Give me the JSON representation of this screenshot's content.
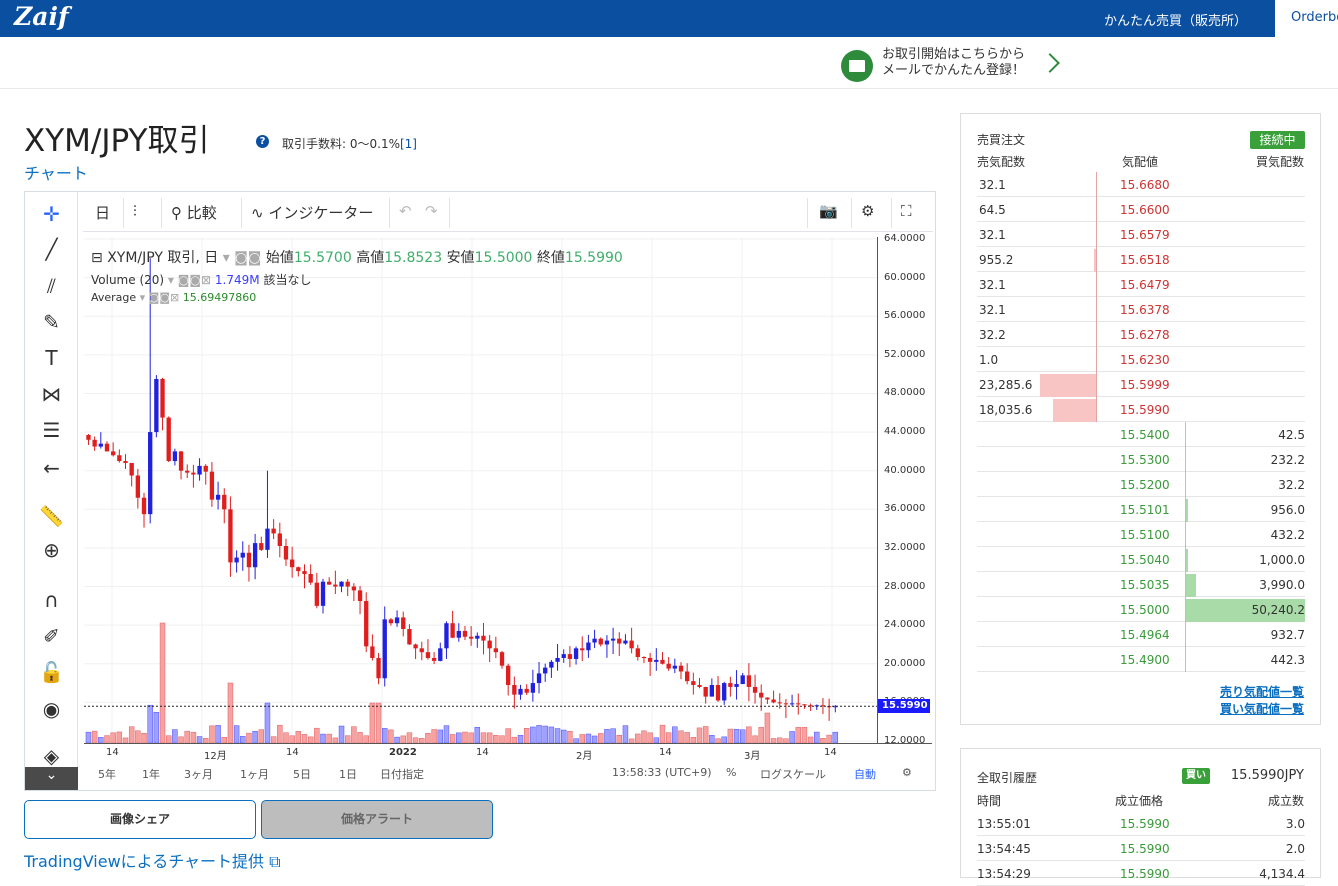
{
  "header": {
    "logo": "Zaif",
    "easy_trade": "かんたん売買（販売所）",
    "orderbook_tab": "Orderbook"
  },
  "promo": {
    "line1": "お取引開始はこちらから",
    "line2": "メールでかんたん登録！",
    "icon": "mail-icon"
  },
  "page": {
    "title": "XYM/JPY取引",
    "fee_label": "取引手数料: 0〜0.1%",
    "fee_link": "[1]",
    "chart_link": "チャート"
  },
  "chart_toolbar": {
    "interval": "日",
    "compare": "比較",
    "indicators": "インジケーター"
  },
  "chart_legend": {
    "symbol": "XYM/JPY 取引, 日",
    "open_label": "始値",
    "open": "15.5700",
    "high_label": "高値",
    "high": "15.8523",
    "low_label": "安値",
    "low": "15.5000",
    "close_label": "終値",
    "close": "15.5990",
    "volume_label": "Volume (20)",
    "volume_value": "1.749M",
    "volume_note": "該当なし",
    "average_label": "Average",
    "average_value": "15.69497860"
  },
  "y_ticks": [
    "64.0000",
    "60.0000",
    "56.0000",
    "52.0000",
    "48.0000",
    "44.0000",
    "40.0000",
    "36.0000",
    "32.0000",
    "28.0000",
    "24.0000",
    "20.0000",
    "16.0000",
    "12.0000"
  ],
  "last_price_label": "15.5990",
  "x_ticks": [
    "14",
    "12月",
    "14",
    "2022",
    "14",
    "2月",
    "14",
    "3月",
    "14"
  ],
  "bottom_toolbar": {
    "ranges": [
      "5年",
      "1年",
      "3ヶ月",
      "1ヶ月",
      "5日",
      "1日"
    ],
    "date_pick": "日付指定",
    "time": "13:58:33 (UTC+9)",
    "percent": "%",
    "log": "ログスケール",
    "auto": "自動"
  },
  "chart_data": {
    "type": "candlestick",
    "title": "XYM/JPY 取引, 日",
    "last": {
      "open": 15.57,
      "high": 15.8523,
      "low": 15.5,
      "close": 15.599
    },
    "ylim": [
      12,
      64
    ],
    "x_ticks": [
      "14",
      "12月",
      "14",
      "2022",
      "14",
      "2月",
      "14",
      "3月",
      "14"
    ],
    "closes": [
      43.2,
      42.5,
      42.8,
      42.0,
      41.6,
      41.0,
      40.8,
      39.5,
      37.2,
      35.5,
      44.0,
      49.5,
      45.5,
      41.0,
      42.0,
      40.0,
      39.8,
      39.6,
      40.5,
      39.9,
      37.0,
      37.5,
      36.0,
      30.5,
      31.0,
      31.5,
      30.0,
      32.5,
      31.8,
      34.0,
      33.5,
      32.2,
      30.8,
      30.0,
      29.6,
      29.3,
      28.4,
      26.0,
      28.5,
      28.2,
      28.0,
      28.5,
      28.0,
      27.6,
      26.5,
      21.8,
      20.6,
      18.5,
      24.6,
      24.2,
      24.8,
      23.6,
      22.0,
      21.6,
      21.2,
      20.6,
      20.3,
      21.6,
      24.2,
      22.7,
      23.4,
      22.8,
      22.6,
      22.9,
      22.4,
      21.6,
      21.2,
      19.8,
      17.8,
      16.8,
      17.4,
      17.0,
      18.0,
      19.0,
      19.6,
      20.2,
      20.6,
      21.0,
      20.5,
      21.6,
      21.4,
      22.2,
      22.6,
      22.0,
      22.4,
      22.6,
      22.1,
      22.4,
      21.6,
      20.7,
      20.6,
      20.2,
      20.4,
      20.0,
      19.5,
      19.8,
      19.2,
      18.2,
      17.8,
      17.6,
      16.6,
      17.8,
      16.2,
      18.0,
      17.6,
      17.9,
      18.8,
      17.6,
      17.0,
      16.5,
      16.3,
      16.0,
      15.9,
      15.8,
      15.9,
      15.8,
      15.7,
      15.6,
      15.7,
      15.6,
      15.5,
      15.6
    ]
  },
  "side_buttons": {
    "share": "画像シェア",
    "alert": "価格アラート",
    "tv_credit": "TradingViewによるチャート提供"
  },
  "orderbook": {
    "title": "売買注文",
    "status": "接続中",
    "headers": {
      "ask_qty": "売気配数",
      "price": "気配値",
      "bid_qty": "買気配数"
    },
    "asks": [
      {
        "qty": "32.1",
        "price": "15.6680",
        "depth": 0
      },
      {
        "qty": "64.5",
        "price": "15.6600",
        "depth": 0
      },
      {
        "qty": "32.1",
        "price": "15.6579",
        "depth": 0
      },
      {
        "qty": "955.2",
        "price": "15.6518",
        "depth": 0.02
      },
      {
        "qty": "32.1",
        "price": "15.6479",
        "depth": 0
      },
      {
        "qty": "32.1",
        "price": "15.6378",
        "depth": 0
      },
      {
        "qty": "32.2",
        "price": "15.6278",
        "depth": 0
      },
      {
        "qty": "1.0",
        "price": "15.6230",
        "depth": 0
      },
      {
        "qty": "23,285.6",
        "price": "15.5999",
        "depth": 0.47
      },
      {
        "qty": "18,035.6",
        "price": "15.5990",
        "depth": 0.36
      }
    ],
    "bids": [
      {
        "price": "15.5400",
        "qty": "42.5",
        "depth": 0
      },
      {
        "price": "15.5300",
        "qty": "232.2",
        "depth": 0
      },
      {
        "price": "15.5200",
        "qty": "32.2",
        "depth": 0
      },
      {
        "price": "15.5101",
        "qty": "956.0",
        "depth": 0.02
      },
      {
        "price": "15.5100",
        "qty": "432.2",
        "depth": 0
      },
      {
        "price": "15.5040",
        "qty": "1,000.0",
        "depth": 0.02
      },
      {
        "price": "15.5035",
        "qty": "3,990.0",
        "depth": 0.08
      },
      {
        "price": "15.5000",
        "qty": "50,240.2",
        "depth": 1.0
      },
      {
        "price": "15.4964",
        "qty": "932.7",
        "depth": 0
      },
      {
        "price": "15.4900",
        "qty": "442.3",
        "depth": 0
      }
    ],
    "ask_list_link": "売り気配値一覧",
    "bid_list_link": "買い気配値一覧"
  },
  "trade_history": {
    "title": "全取引履歴",
    "side_badge": "買い",
    "last_price": "15.5990JPY",
    "headers": {
      "time": "時間",
      "price": "成立価格",
      "qty": "成立数"
    },
    "rows": [
      {
        "time": "13:55:01",
        "price": "15.5990",
        "qty": "3.0"
      },
      {
        "time": "13:54:45",
        "price": "15.5990",
        "qty": "2.0"
      },
      {
        "time": "13:54:29",
        "price": "15.5990",
        "qty": "4,134.4"
      }
    ]
  }
}
